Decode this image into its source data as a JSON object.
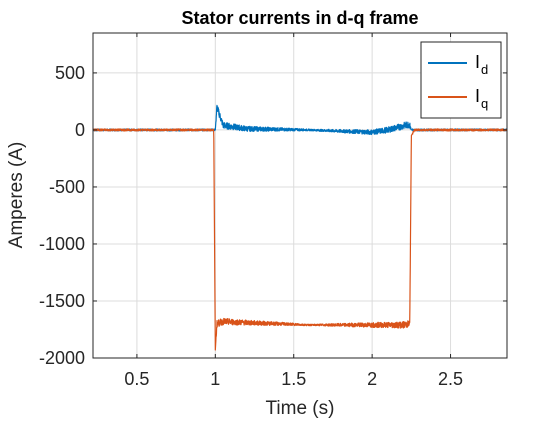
{
  "chart_data": {
    "type": "line",
    "title": "Stator currents in d-q frame",
    "xlabel": "Time (s)",
    "ylabel": "Amperes (A)",
    "xlim": [
      0.22,
      2.86
    ],
    "ylim": [
      -2000,
      850
    ],
    "xticks": [
      0.5,
      1,
      1.5,
      2,
      2.5
    ],
    "xtick_labels": [
      "0.5",
      "1",
      "1.5",
      "2",
      "2.5"
    ],
    "yticks": [
      500,
      0,
      -500,
      -1000,
      -1500,
      -2000
    ],
    "ytick_labels": [
      "500",
      "0",
      "-500",
      "-1000",
      "-1500",
      "-2000"
    ],
    "grid": true,
    "legend_position": "top-right",
    "series": [
      {
        "name": "I",
        "subscript": "d",
        "color": "#0072BD",
        "x": [
          0.22,
          0.5,
          0.99,
          1.0,
          1.01,
          1.05,
          1.2,
          1.4,
          1.6,
          1.8,
          2.0,
          2.1,
          2.24,
          2.25,
          2.27,
          2.5,
          2.86
        ],
        "y": [
          0,
          0,
          0,
          0,
          200,
          40,
          10,
          5,
          0,
          -10,
          -20,
          0,
          50,
          0,
          0,
          0,
          0
        ]
      },
      {
        "name": "I",
        "subscript": "q",
        "color": "#D95319",
        "x": [
          0.22,
          0.5,
          0.99,
          1.0,
          1.01,
          1.05,
          1.2,
          1.4,
          1.6,
          1.8,
          2.0,
          2.2,
          2.24,
          2.25,
          2.27,
          2.5,
          2.86
        ],
        "y": [
          0,
          0,
          0,
          -1930,
          -1700,
          -1680,
          -1690,
          -1700,
          -1710,
          -1710,
          -1710,
          -1710,
          -1700,
          -50,
          0,
          0,
          0
        ]
      }
    ]
  }
}
